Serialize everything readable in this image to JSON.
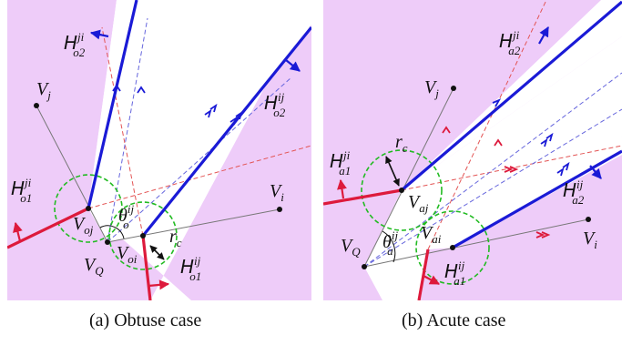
{
  "colors": {
    "region": "#eeccf9",
    "blue": "#1a1ad6",
    "red": "#dd1a3c",
    "green": "#22bb22",
    "gray": "#777777",
    "black": "#111111"
  },
  "captions": {
    "a": "(a) Obtuse case",
    "b": "(b) Acute case"
  },
  "panel_a": {
    "labels": {
      "H_o2_ji": {
        "base": "H",
        "sup": "ji",
        "sub": "o2"
      },
      "H_o2_ij": {
        "base": "H",
        "sup": "ij",
        "sub": "o2"
      },
      "H_o1_ji": {
        "base": "H",
        "sup": "ji",
        "sub": "o1"
      },
      "H_o1_ij": {
        "base": "H",
        "sup": "ij",
        "sub": "o1"
      },
      "V_j": {
        "base": "V",
        "sub": "j"
      },
      "V_i": {
        "base": "V",
        "sub": "i"
      },
      "V_oj": {
        "base": "V",
        "sub": "oj"
      },
      "V_oi": {
        "base": "V",
        "sub": "oi"
      },
      "V_Q": {
        "base": "V",
        "sub": "Q"
      },
      "theta": {
        "base": "θ",
        "sup": "ij",
        "sub": "o"
      },
      "r_c": {
        "base": "r",
        "sub": "c"
      }
    }
  },
  "panel_b": {
    "labels": {
      "H_a2_ji": {
        "base": "H",
        "sup": "ji",
        "sub": "a2"
      },
      "H_a2_ij": {
        "base": "H",
        "sup": "ij",
        "sub": "a2"
      },
      "H_a1_ji": {
        "base": "H",
        "sup": "ji",
        "sub": "a1"
      },
      "H_a1_ij": {
        "base": "H",
        "sup": "ij",
        "sub": "a1"
      },
      "V_j": {
        "base": "V",
        "sub": "j"
      },
      "V_i": {
        "base": "V",
        "sub": "i"
      },
      "V_aj": {
        "base": "V",
        "sub": "aj"
      },
      "V_ai": {
        "base": "V",
        "sub": "ai"
      },
      "V_Q": {
        "base": "V",
        "sub": "Q"
      },
      "theta": {
        "base": "θ",
        "sup": "ij",
        "sub": "a"
      },
      "r_c": {
        "base": "r",
        "sub": "c"
      }
    }
  }
}
